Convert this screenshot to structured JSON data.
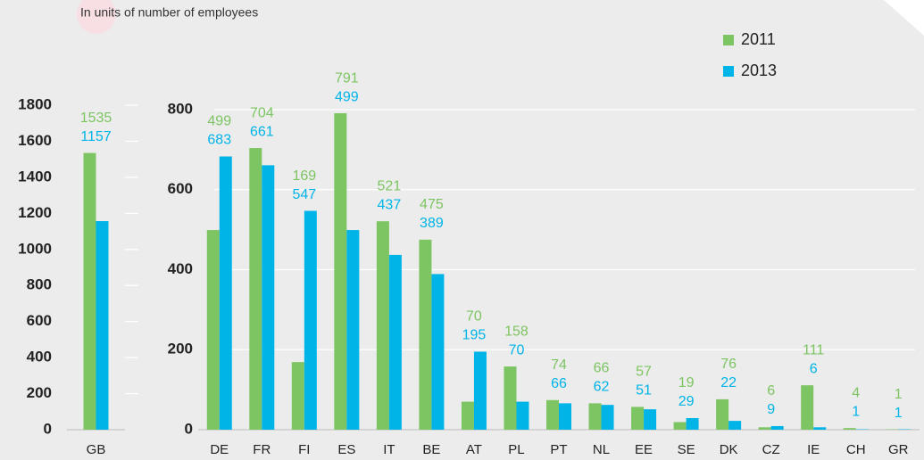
{
  "chart_data": [
    {
      "type": "bar",
      "subtitle": "In units of number of employees",
      "categories": [
        "GB"
      ],
      "series": [
        {
          "name": "2011",
          "color": "#7dc462",
          "values": [
            1535
          ]
        },
        {
          "name": "2013",
          "color": "#00b4e8",
          "values": [
            1157
          ]
        }
      ],
      "ylim": [
        0,
        1800
      ],
      "yticks": [
        0,
        200,
        400,
        600,
        800,
        1000,
        1200,
        1400,
        1600,
        1800
      ]
    },
    {
      "type": "bar",
      "categories": [
        "DE",
        "FR",
        "FI",
        "ES",
        "IT",
        "BE",
        "AT",
        "PL",
        "PT",
        "NL",
        "EE",
        "SE",
        "DK",
        "CZ",
        "IE",
        "CH",
        "GR"
      ],
      "series": [
        {
          "name": "2011",
          "color": "#7dc462",
          "values": [
            499,
            704,
            169,
            791,
            521,
            475,
            70,
            158,
            74,
            66,
            57,
            19,
            76,
            6,
            111,
            4,
            1
          ]
        },
        {
          "name": "2013",
          "color": "#00b4e8",
          "values": [
            683,
            661,
            547,
            499,
            437,
            389,
            195,
            70,
            66,
            62,
            51,
            29,
            22,
            9,
            6,
            1,
            1
          ]
        }
      ],
      "ylim": [
        0,
        800
      ],
      "yticks": [
        0,
        200,
        400,
        600,
        800
      ],
      "grid": true,
      "legend": "top-right"
    }
  ]
}
